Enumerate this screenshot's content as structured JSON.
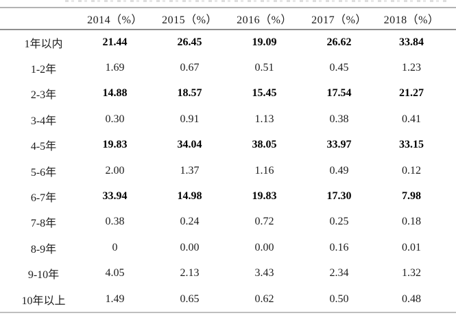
{
  "clipped_title": {
    "note": "illegible clipped bottom edge of title text"
  },
  "chart_data": {
    "type": "table",
    "columns": [
      "",
      "2014（%）",
      "2015（%）",
      "2016（%）",
      "2017（%）",
      "2018（%）"
    ],
    "rows": [
      {
        "label": "1年以内",
        "values": [
          "21.44",
          "26.45",
          "19.09",
          "26.62",
          "33.84"
        ],
        "bold": true
      },
      {
        "label": "1-2年",
        "values": [
          "1.69",
          "0.67",
          "0.51",
          "0.45",
          "1.23"
        ],
        "bold": false
      },
      {
        "label": "2-3年",
        "values": [
          "14.88",
          "18.57",
          "15.45",
          "17.54",
          "21.27"
        ],
        "bold": true
      },
      {
        "label": "3-4年",
        "values": [
          "0.30",
          "0.91",
          "1.13",
          "0.38",
          "0.41"
        ],
        "bold": false
      },
      {
        "label": "4-5年",
        "values": [
          "19.83",
          "34.04",
          "38.05",
          "33.97",
          "33.15"
        ],
        "bold": true
      },
      {
        "label": "5-6年",
        "values": [
          "2.00",
          "1.37",
          "1.16",
          "0.49",
          "0.12"
        ],
        "bold": false
      },
      {
        "label": "6-7年",
        "values": [
          "33.94",
          "14.98",
          "19.83",
          "17.30",
          "7.98"
        ],
        "bold": true
      },
      {
        "label": "7-8年",
        "values": [
          "0.38",
          "0.24",
          "0.72",
          "0.25",
          "0.18"
        ],
        "bold": false
      },
      {
        "label": "8-9年",
        "values": [
          "0",
          "0.00",
          "0.00",
          "0.16",
          "0.01"
        ],
        "bold": false
      },
      {
        "label": "9-10年",
        "values": [
          "4.05",
          "2.13",
          "3.43",
          "2.34",
          "1.32"
        ],
        "bold": false
      },
      {
        "label": "10年以上",
        "values": [
          "1.49",
          "0.65",
          "0.62",
          "0.50",
          "0.48"
        ],
        "bold": false
      }
    ]
  }
}
